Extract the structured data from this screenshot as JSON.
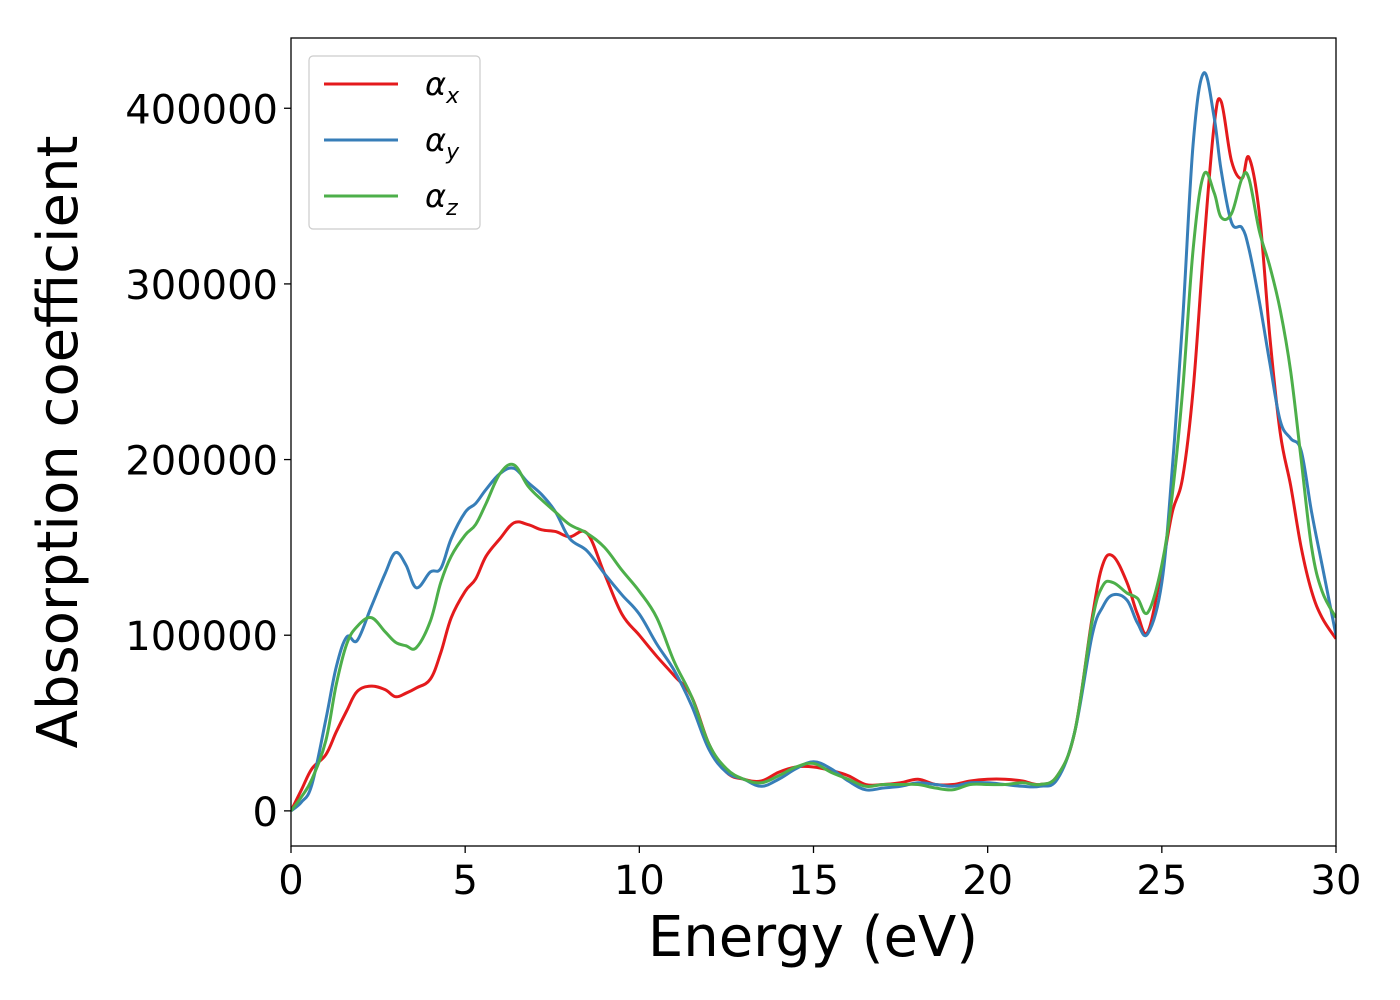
{
  "chart_data": {
    "type": "line",
    "xlabel": "Energy (eV)",
    "ylabel": "Absorption coefficient",
    "xlim": [
      0,
      30
    ],
    "ylim": [
      -20000,
      440000
    ],
    "xticks": [
      0,
      5,
      10,
      15,
      20,
      25,
      30
    ],
    "xtick_labels": [
      "0",
      "5",
      "10",
      "15",
      "20",
      "25",
      "30"
    ],
    "yticks": [
      0,
      100000,
      200000,
      300000,
      400000
    ],
    "ytick_labels": [
      "0",
      "100000",
      "200000",
      "300000",
      "400000"
    ],
    "grid": false,
    "legend_position": "top-left",
    "x": [
      0,
      0.3,
      0.6,
      1.0,
      1.3,
      1.6,
      1.9,
      2.3,
      2.7,
      3.0,
      3.3,
      3.6,
      4.0,
      4.3,
      4.6,
      5.0,
      5.3,
      5.6,
      6.0,
      6.4,
      6.8,
      7.2,
      7.6,
      8.0,
      8.5,
      9.0,
      9.5,
      10.0,
      10.5,
      11.0,
      11.5,
      12.0,
      12.5,
      13.0,
      13.5,
      14.0,
      14.5,
      15.0,
      15.5,
      16.0,
      16.5,
      17.0,
      17.5,
      18.0,
      18.5,
      19.0,
      19.5,
      20.0,
      20.5,
      21.0,
      21.5,
      22.0,
      22.5,
      23.0,
      23.3,
      23.6,
      24.0,
      24.3,
      24.6,
      25.0,
      25.3,
      25.6,
      25.9,
      26.2,
      26.5,
      26.7,
      27.0,
      27.3,
      27.5,
      27.8,
      28.1,
      28.4,
      28.7,
      29.0,
      29.3,
      29.6,
      30.0
    ],
    "series": [
      {
        "name": "αx",
        "color": "#e41a1c",
        "values": [
          0,
          12000,
          24000,
          32000,
          45000,
          57000,
          68000,
          71000,
          69000,
          65000,
          67000,
          70000,
          75000,
          90000,
          110000,
          125000,
          132000,
          145000,
          155000,
          164000,
          163000,
          160000,
          159000,
          156000,
          158000,
          135000,
          112000,
          100000,
          88000,
          77000,
          65000,
          38000,
          22000,
          18000,
          17000,
          22000,
          25000,
          25000,
          23000,
          20000,
          15000,
          15000,
          16000,
          18000,
          15000,
          15000,
          17000,
          18000,
          18000,
          17000,
          15000,
          20000,
          45000,
          110000,
          140000,
          145000,
          130000,
          112000,
          102000,
          138000,
          170000,
          190000,
          240000,
          320000,
          390000,
          404000,
          370000,
          360000,
          372000,
          340000,
          270000,
          215000,
          185000,
          150000,
          125000,
          110000,
          98000
        ]
      },
      {
        "name": "αy",
        "color": "#377eb8",
        "values": [
          0,
          5000,
          15000,
          52000,
          82000,
          99000,
          97000,
          116000,
          135000,
          147000,
          140000,
          127000,
          136000,
          138000,
          155000,
          170000,
          175000,
          183000,
          192000,
          195000,
          187000,
          180000,
          170000,
          155000,
          148000,
          135000,
          123000,
          112000,
          95000,
          80000,
          60000,
          35000,
          22000,
          18000,
          14000,
          18000,
          24000,
          28000,
          24000,
          17000,
          12000,
          13000,
          14000,
          16000,
          15000,
          14000,
          16000,
          16000,
          15000,
          14000,
          14000,
          18000,
          45000,
          100000,
          116000,
          123000,
          120000,
          107000,
          101000,
          130000,
          195000,
          280000,
          380000,
          420000,
          395000,
          365000,
          335000,
          332000,
          320000,
          290000,
          255000,
          222000,
          212000,
          205000,
          170000,
          140000,
          100000
        ]
      },
      {
        "name": "αz",
        "color": "#4daf4a",
        "values": [
          0,
          8000,
          18000,
          40000,
          72000,
          95000,
          105000,
          110000,
          102000,
          96000,
          94000,
          93000,
          108000,
          130000,
          145000,
          157000,
          163000,
          175000,
          192000,
          197000,
          185000,
          177000,
          170000,
          163000,
          158000,
          150000,
          137000,
          125000,
          110000,
          85000,
          65000,
          38000,
          24000,
          18000,
          16000,
          20000,
          25000,
          27000,
          22000,
          18000,
          14000,
          15000,
          15000,
          15000,
          13000,
          12000,
          15000,
          15000,
          15000,
          16000,
          15000,
          20000,
          45000,
          108000,
          128000,
          130000,
          124000,
          121000,
          113000,
          140000,
          180000,
          240000,
          320000,
          362000,
          352000,
          338000,
          340000,
          360000,
          360000,
          330000,
          310000,
          285000,
          250000,
          200000,
          150000,
          125000,
          110000
        ]
      }
    ]
  }
}
